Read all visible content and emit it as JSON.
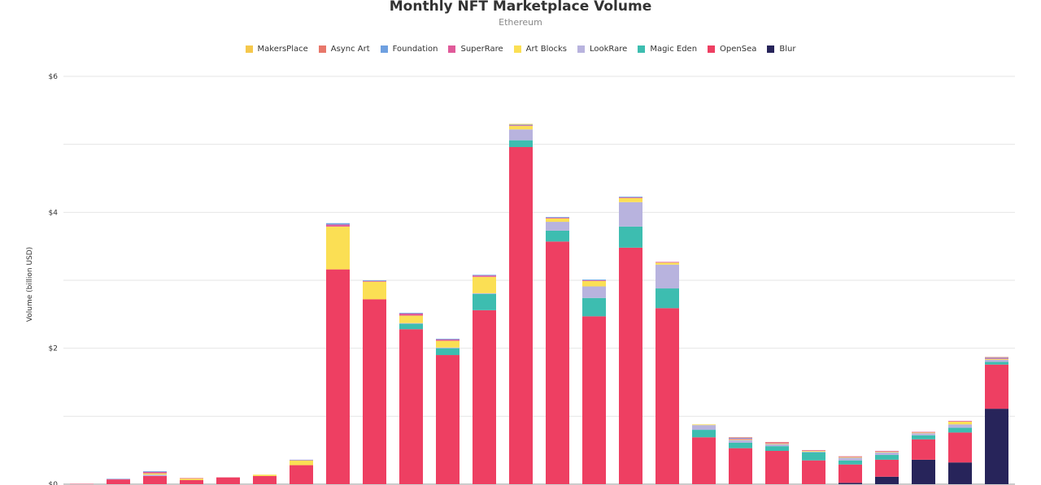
{
  "chart_data": {
    "type": "bar",
    "stacked": true,
    "title": "Monthly NFT Marketplace Volume",
    "subtitle": "Ethereum",
    "ylabel": "Volume (billion USD)",
    "ylim": [
      0,
      6
    ],
    "yticks": [
      {
        "v": 0,
        "label": "$0"
      },
      {
        "v": 2,
        "label": "$2"
      },
      {
        "v": 4,
        "label": "$4"
      },
      {
        "v": 6,
        "label": "$6"
      }
    ],
    "grid": true,
    "legend_position": "top",
    "legend": [
      "MakersPlace",
      "Async Art",
      "Foundation",
      "SuperRare",
      "Art Blocks",
      "LookRare",
      "Magic Eden",
      "OpenSea",
      "Blur"
    ],
    "series": [
      {
        "name": "Blur",
        "color": "#27245a",
        "values": [
          0,
          0,
          0,
          0,
          0,
          0,
          0,
          0,
          0,
          0,
          0,
          0,
          0,
          0,
          0,
          0,
          0,
          0,
          0,
          0,
          0,
          0.02,
          0.11,
          0.36,
          0.32,
          1.11
        ]
      },
      {
        "name": "OpenSea",
        "color": "#ee3f62",
        "values": [
          0.005,
          0.07,
          0.12,
          0.06,
          0.1,
          0.12,
          0.28,
          3.16,
          2.72,
          2.28,
          1.9,
          2.56,
          4.96,
          3.57,
          2.47,
          3.48,
          2.59,
          0.69,
          0.53,
          0.49,
          0.35,
          0.27,
          0.25,
          0.3,
          0.44,
          0.65
        ]
      },
      {
        "name": "Magic Eden",
        "color": "#3dbdb0",
        "values": [
          0,
          0,
          0,
          0,
          0,
          0,
          0,
          0,
          0,
          0.08,
          0.1,
          0.24,
          0.1,
          0.16,
          0.27,
          0.31,
          0.29,
          0.11,
          0.08,
          0.07,
          0.12,
          0.06,
          0.07,
          0.06,
          0.07,
          0.04
        ]
      },
      {
        "name": "LookRare",
        "color": "#b8b3de",
        "values": [
          0,
          0,
          0.02,
          0,
          0,
          0,
          0,
          0,
          0,
          0.01,
          0.01,
          0.01,
          0.16,
          0.13,
          0.17,
          0.36,
          0.35,
          0.07,
          0.04,
          0.03,
          0.01,
          0.04,
          0.04,
          0.03,
          0.05,
          0.03
        ]
      },
      {
        "name": "Art Blocks",
        "color": "#fbdf54",
        "values": [
          0,
          0,
          0.02,
          0.02,
          0,
          0.02,
          0.07,
          0.63,
          0.26,
          0.11,
          0.1,
          0.24,
          0.05,
          0.05,
          0.08,
          0.06,
          0.03,
          0.01,
          0.01,
          0.01,
          0.01,
          0.01,
          0.01,
          0.01,
          0.04,
          0.01
        ]
      },
      {
        "name": "SuperRare",
        "color": "#e05a9a",
        "values": [
          0,
          0.005,
          0.02,
          0,
          0,
          0,
          0.005,
          0.03,
          0.01,
          0.03,
          0.02,
          0.02,
          0.01,
          0.01,
          0.01,
          0.01,
          0.01,
          0,
          0.01,
          0.01,
          0.01,
          0.01,
          0.01,
          0.01,
          0.01,
          0.01
        ]
      },
      {
        "name": "Foundation",
        "color": "#6fa0e0",
        "values": [
          0,
          0.005,
          0.01,
          0,
          0,
          0,
          0.005,
          0.02,
          0.01,
          0.01,
          0.01,
          0.01,
          0.01,
          0.01,
          0.01,
          0.01,
          0,
          0,
          0.01,
          0,
          0,
          0,
          0,
          0,
          0,
          0.01
        ]
      },
      {
        "name": "Async Art",
        "color": "#e8776a",
        "values": [
          0,
          0,
          0,
          0.01,
          0,
          0,
          0,
          0,
          0,
          0,
          0,
          0,
          0,
          0,
          0,
          0,
          0,
          0,
          0.01,
          0.01,
          0,
          0,
          0,
          0,
          0,
          0.01
        ]
      },
      {
        "name": "MakersPlace",
        "color": "#f5c84c",
        "values": [
          0,
          0,
          0,
          0,
          0,
          0,
          0,
          0,
          0,
          0,
          0,
          0,
          0.01,
          0,
          0,
          0,
          0,
          0,
          0,
          0,
          0,
          0,
          0,
          0,
          0,
          0
        ]
      }
    ]
  }
}
